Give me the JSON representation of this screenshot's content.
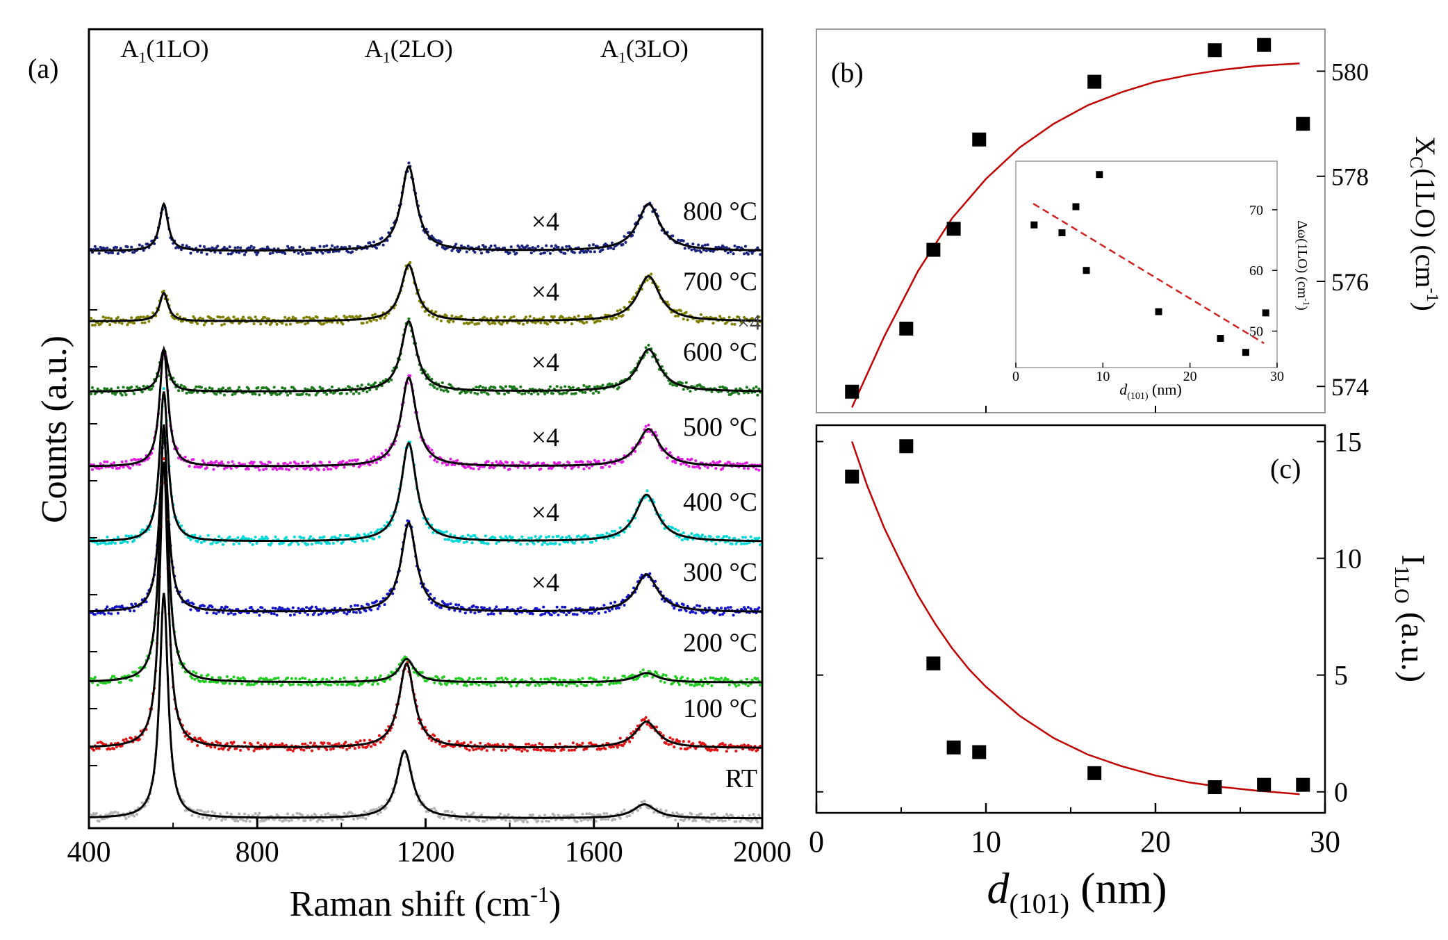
{
  "chart_data": [
    {
      "panel": "a",
      "type": "line",
      "title": "",
      "panel_label": "(a)",
      "xlabel": "Raman shift (cm",
      "xlabel_sup": "-1",
      "xlabel_close": ")",
      "ylabel": "Counts (a.u.)",
      "xlim": [
        400,
        2000
      ],
      "x_ticks": [
        400,
        800,
        1200,
        1600,
        2000
      ],
      "y_ticks_visible": false,
      "peak_labels": [
        {
          "main": "A",
          "sub": "1",
          "rest": "(1LO)",
          "x": 580
        },
        {
          "main": "A",
          "sub": "1",
          "rest": "(2LO)",
          "x": 1160
        },
        {
          "main": "A",
          "sub": "1",
          "rest": "(3LO)",
          "x": 1720
        }
      ],
      "series": [
        {
          "name": "800 °C",
          "label": "800 °C",
          "scale_label": "×4",
          "color": "#1a237e",
          "baseline": 5.7,
          "peaks": [
            {
              "x": 578,
              "h": 0.5,
              "w": 12
            },
            {
              "x": 1160,
              "h": 0.9,
              "w": 22
            },
            {
              "x": 1730,
              "h": 0.5,
              "w": 32
            }
          ]
        },
        {
          "name": "700 °C",
          "label": "700 °C",
          "scale_label": "×4",
          "extra_label": "×4",
          "color": "#808000",
          "baseline": 4.95,
          "peaks": [
            {
              "x": 578,
              "h": 0.3,
              "w": 12
            },
            {
              "x": 1160,
              "h": 0.6,
              "w": 22
            },
            {
              "x": 1730,
              "h": 0.48,
              "w": 32
            }
          ]
        },
        {
          "name": "600 °C",
          "label": "600 °C",
          "scale_label": "×4",
          "color": "#1b7a1b",
          "baseline": 4.2,
          "peaks": [
            {
              "x": 578,
              "h": 0.45,
              "w": 12
            },
            {
              "x": 1160,
              "h": 0.75,
              "w": 22
            },
            {
              "x": 1730,
              "h": 0.45,
              "w": 32
            }
          ]
        },
        {
          "name": "500 °C",
          "label": "500 °C",
          "scale_label": "×4",
          "color": "#e01ee0",
          "baseline": 3.4,
          "peaks": [
            {
              "x": 578,
              "h": 1.25,
              "w": 12
            },
            {
              "x": 1160,
              "h": 0.95,
              "w": 22
            },
            {
              "x": 1730,
              "h": 0.4,
              "w": 32
            }
          ]
        },
        {
          "name": "400 °C",
          "label": "400 °C",
          "scale_label": "×4",
          "color": "#00d8d8",
          "baseline": 2.6,
          "peaks": [
            {
              "x": 578,
              "h": 1.6,
              "w": 12
            },
            {
              "x": 1160,
              "h": 1.05,
              "w": 22
            },
            {
              "x": 1725,
              "h": 0.5,
              "w": 32
            }
          ]
        },
        {
          "name": "300 °C",
          "label": "300 °C",
          "scale_label": "×4",
          "color": "#1414c8",
          "baseline": 1.85,
          "peaks": [
            {
              "x": 578,
              "h": 1.9,
              "w": 12
            },
            {
              "x": 1160,
              "h": 0.95,
              "w": 22
            },
            {
              "x": 1725,
              "h": 0.4,
              "w": 32
            }
          ]
        },
        {
          "name": "200 °C",
          "label": "200 °C",
          "scale_label": "",
          "color": "#22cc22",
          "baseline": 1.1,
          "peaks": [
            {
              "x": 578,
              "h": 2.75,
              "w": 12
            },
            {
              "x": 1155,
              "h": 0.25,
              "w": 22
            },
            {
              "x": 1725,
              "h": 0.1,
              "w": 32
            }
          ]
        },
        {
          "name": "100 °C",
          "label": "100 °C",
          "scale_label": "",
          "color": "#e01414",
          "baseline": 0.4,
          "peaks": [
            {
              "x": 578,
              "h": 3.05,
              "w": 12
            },
            {
              "x": 1155,
              "h": 0.9,
              "w": 22
            },
            {
              "x": 1725,
              "h": 0.28,
              "w": 32
            }
          ]
        },
        {
          "name": "RT",
          "label": "RT",
          "scale_label": "",
          "color": "#b4b4b4",
          "baseline": -0.35,
          "peaks": [
            {
              "x": 578,
              "h": 2.4,
              "w": 12
            },
            {
              "x": 1150,
              "h": 0.72,
              "w": 22
            },
            {
              "x": 1720,
              "h": 0.15,
              "w": 32
            }
          ]
        }
      ]
    },
    {
      "panel": "b",
      "type": "scatter",
      "panel_label": "(b)",
      "ylabel": "X",
      "ylabel_sub": "C",
      "ylabel_mid": "(1LO) (cm",
      "ylabel_sup": "-1",
      "ylabel_close": ")",
      "xlim": [
        0,
        30
      ],
      "ylim": [
        573.5,
        580.8
      ],
      "y_ticks": [
        574,
        576,
        578,
        580
      ],
      "x": [
        2.1,
        5.3,
        6.9,
        8.1,
        9.6,
        16.4,
        23.5,
        26.4,
        28.7
      ],
      "y": [
        573.9,
        575.1,
        576.6,
        577.0,
        578.7,
        579.8,
        580.4,
        580.5,
        579.0
      ],
      "fit_x": [
        2.1,
        4,
        6,
        8,
        10,
        12,
        14,
        16,
        18,
        20,
        22,
        24,
        26,
        28.5
      ],
      "fit_y": [
        573.6,
        574.95,
        576.2,
        577.2,
        577.95,
        578.55,
        579.0,
        579.35,
        579.6,
        579.8,
        579.93,
        580.03,
        580.1,
        580.15
      ],
      "inset": {
        "xlabel": "d",
        "xlabel_sub": "(101)",
        "xlabel_rest": " (nm)",
        "ylabel": "Δω(1LO) (cm",
        "ylabel_sup": "-1",
        "ylabel_close": ")",
        "xlim": [
          0,
          30
        ],
        "ylim": [
          44,
          78
        ],
        "x_ticks": [
          0,
          10,
          20,
          30
        ],
        "y_ticks": [
          50,
          60,
          70
        ],
        "x": [
          2.1,
          5.3,
          6.9,
          8.1,
          9.6,
          16.4,
          23.5,
          26.4,
          28.7
        ],
        "y": [
          67.5,
          66.2,
          70.5,
          60.0,
          75.8,
          53.2,
          48.8,
          46.5,
          53.0
        ],
        "fit_x": [
          2,
          28.5
        ],
        "fit_y": [
          71.0,
          48.0
        ]
      }
    },
    {
      "panel": "c",
      "type": "scatter",
      "panel_label": "(c)",
      "xlabel": "d",
      "xlabel_sub": "(101)",
      "xlabel_rest": " (nm)",
      "ylabel": "I",
      "ylabel_sub": "1LO",
      "ylabel_rest": " (a.u.)",
      "xlim": [
        0,
        30
      ],
      "ylim": [
        -0.9,
        15.7
      ],
      "x_ticks": [
        0,
        10,
        20,
        30
      ],
      "y_ticks": [
        0,
        5,
        10,
        15
      ],
      "x": [
        2.1,
        5.3,
        6.9,
        8.1,
        9.6,
        16.4,
        23.5,
        26.4,
        28.7
      ],
      "y": [
        13.5,
        14.8,
        5.5,
        1.9,
        1.7,
        0.8,
        0.2,
        0.3,
        0.3
      ],
      "fit_x": [
        2.1,
        3,
        4,
        5,
        6,
        7,
        8,
        9,
        10,
        12,
        14,
        16,
        18,
        20,
        22,
        24,
        26,
        28.5
      ],
      "fit_y": [
        15.0,
        13.1,
        11.3,
        9.8,
        8.4,
        7.2,
        6.15,
        5.25,
        4.5,
        3.25,
        2.3,
        1.6,
        1.1,
        0.7,
        0.4,
        0.2,
        0.05,
        -0.1
      ]
    }
  ]
}
